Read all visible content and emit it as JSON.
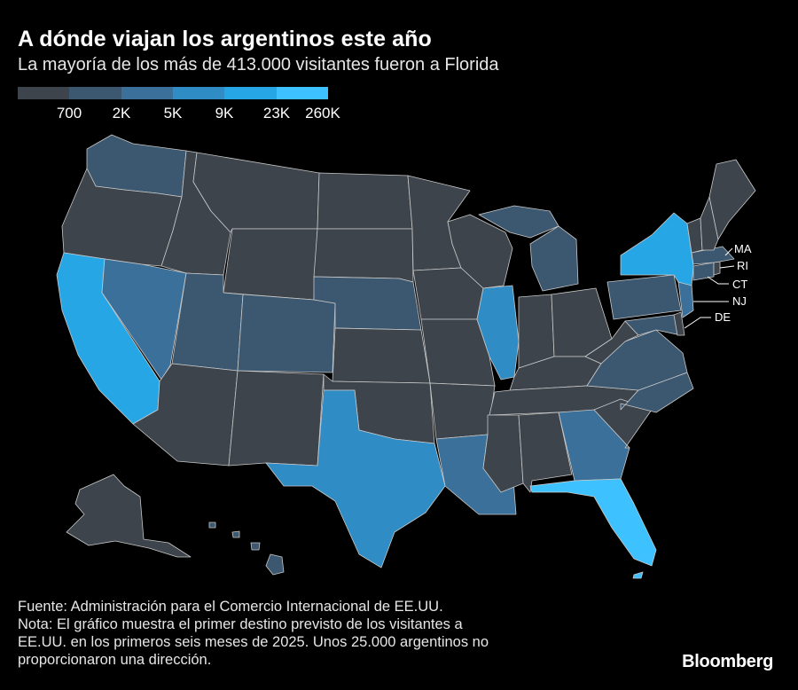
{
  "header": {
    "title": "A dónde viajan los argentinos este año",
    "subtitle": "La mayoría de los más de 413.000 visitantes fueron a Florida"
  },
  "legend": {
    "labels": [
      "700",
      "2K",
      "5K",
      "9K",
      "23K",
      "260K"
    ],
    "colors": [
      "#3d444c",
      "#3c5870",
      "#3a7099",
      "#2f8cc4",
      "#27a6e6",
      "#3dc2ff"
    ]
  },
  "map": {
    "base_color": "#3d444c",
    "states": {
      "FL": 5,
      "NY": 4,
      "CA": 4,
      "TX": 3,
      "IL": 3,
      "NJ": 2,
      "NV": 2,
      "GA": 2,
      "LA": 2,
      "CO": 1,
      "UT": 1,
      "WA": 1,
      "NE": 1,
      "MI": 1,
      "PA": 1,
      "VA": 1,
      "NC": 1,
      "MD": 1,
      "MA": 1,
      "CT": 1,
      "HI": 1
    },
    "callouts": [
      "MA",
      "RI",
      "CT",
      "NJ",
      "DE"
    ]
  },
  "footer": {
    "source": "Fuente: Administración para el Comercio Internacional de EE.UU.",
    "note_1": "Nota: El gráfico muestra el primer destino previsto de los visitantes a",
    "note_2": "EE.UU. en los primeros seis meses de 2025. Unos 25.000 argentinos no",
    "note_3": "proporcionaron una dirección."
  },
  "brand": "Bloomberg"
}
